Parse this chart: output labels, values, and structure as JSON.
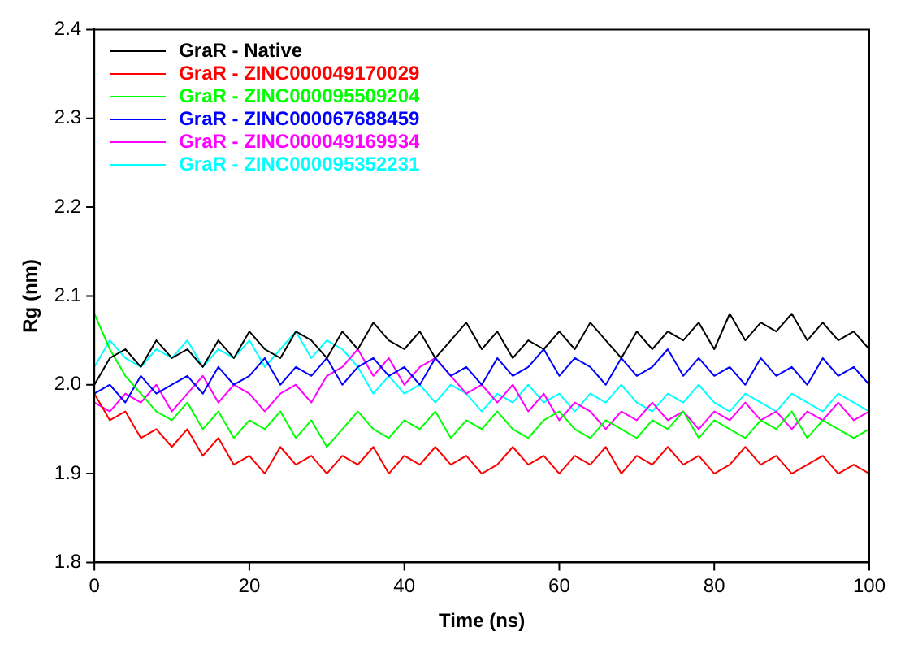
{
  "chart_data": {
    "type": "line",
    "xlabel": "Time (ns)",
    "ylabel": "Rg (nm)",
    "x": [
      0,
      2,
      4,
      6,
      8,
      10,
      12,
      14,
      16,
      18,
      20,
      22,
      24,
      26,
      28,
      30,
      32,
      34,
      36,
      38,
      40,
      42,
      44,
      46,
      48,
      50,
      52,
      54,
      56,
      58,
      60,
      62,
      64,
      66,
      68,
      70,
      72,
      74,
      76,
      78,
      80,
      82,
      84,
      86,
      88,
      90,
      92,
      94,
      96,
      98,
      100
    ],
    "xlim": [
      0,
      100
    ],
    "xticks": [
      0,
      20,
      40,
      60,
      80,
      100
    ],
    "ylim": [
      1.8,
      2.4
    ],
    "yticks": [
      1.8,
      1.9,
      {
        "value": 2.0,
        "label": "2.0"
      },
      2.1,
      2.2,
      2.3,
      2.4
    ],
    "grid": false,
    "legend": "top left",
    "marker": "none",
    "line_style": "solid",
    "series": [
      {
        "name": "GraR - Native",
        "color": "#000000",
        "values": [
          2.0,
          2.03,
          2.04,
          2.02,
          2.05,
          2.03,
          2.04,
          2.02,
          2.05,
          2.03,
          2.06,
          2.04,
          2.03,
          2.06,
          2.05,
          2.03,
          2.06,
          2.04,
          2.07,
          2.05,
          2.04,
          2.06,
          2.03,
          2.05,
          2.07,
          2.04,
          2.06,
          2.03,
          2.05,
          2.04,
          2.06,
          2.04,
          2.07,
          2.05,
          2.03,
          2.06,
          2.04,
          2.06,
          2.05,
          2.07,
          2.04,
          2.08,
          2.05,
          2.07,
          2.06,
          2.08,
          2.05,
          2.07,
          2.05,
          2.06,
          2.04
        ]
      },
      {
        "name": "GraR - ZINC000049170029",
        "color": "#ff0000",
        "values": [
          1.99,
          1.96,
          1.97,
          1.94,
          1.95,
          1.93,
          1.95,
          1.92,
          1.94,
          1.91,
          1.92,
          1.9,
          1.93,
          1.91,
          1.92,
          1.9,
          1.92,
          1.91,
          1.93,
          1.9,
          1.92,
          1.91,
          1.93,
          1.91,
          1.92,
          1.9,
          1.91,
          1.93,
          1.91,
          1.92,
          1.9,
          1.92,
          1.91,
          1.93,
          1.9,
          1.92,
          1.91,
          1.93,
          1.91,
          1.92,
          1.9,
          1.91,
          1.93,
          1.91,
          1.92,
          1.9,
          1.91,
          1.92,
          1.9,
          1.91,
          1.9
        ]
      },
      {
        "name": "GraR - ZINC000095509204",
        "color": "#00ff00",
        "values": [
          2.08,
          2.04,
          2.01,
          1.99,
          1.97,
          1.96,
          1.98,
          1.95,
          1.97,
          1.94,
          1.96,
          1.95,
          1.97,
          1.94,
          1.96,
          1.93,
          1.95,
          1.97,
          1.95,
          1.94,
          1.96,
          1.95,
          1.97,
          1.94,
          1.96,
          1.95,
          1.97,
          1.95,
          1.94,
          1.96,
          1.97,
          1.95,
          1.94,
          1.96,
          1.95,
          1.94,
          1.96,
          1.95,
          1.97,
          1.94,
          1.96,
          1.95,
          1.94,
          1.96,
          1.95,
          1.97,
          1.94,
          1.96,
          1.95,
          1.94,
          1.95
        ]
      },
      {
        "name": "GraR - ZINC000067688459",
        "color": "#0000ff",
        "values": [
          1.99,
          2.0,
          1.98,
          2.01,
          1.99,
          2.0,
          2.01,
          1.99,
          2.02,
          2.0,
          2.01,
          2.03,
          2.0,
          2.02,
          2.01,
          2.03,
          2.0,
          2.02,
          2.03,
          2.01,
          2.02,
          2.0,
          2.03,
          2.01,
          2.02,
          2.0,
          2.03,
          2.01,
          2.02,
          2.04,
          2.01,
          2.03,
          2.02,
          2.0,
          2.03,
          2.01,
          2.02,
          2.04,
          2.01,
          2.03,
          2.01,
          2.02,
          2.0,
          2.03,
          2.01,
          2.02,
          2.0,
          2.03,
          2.01,
          2.02,
          2.0
        ]
      },
      {
        "name": "GraR - ZINC000049169934",
        "color": "#ff00ff",
        "values": [
          1.98,
          1.97,
          1.99,
          1.98,
          2.0,
          1.97,
          1.99,
          2.01,
          1.98,
          2.0,
          1.99,
          1.97,
          1.99,
          2.0,
          1.98,
          2.01,
          2.02,
          2.04,
          2.01,
          2.03,
          2.0,
          2.02,
          2.03,
          2.01,
          1.99,
          2.0,
          1.98,
          2.0,
          1.97,
          1.99,
          1.96,
          1.98,
          1.97,
          1.95,
          1.97,
          1.96,
          1.98,
          1.96,
          1.97,
          1.95,
          1.97,
          1.96,
          1.98,
          1.96,
          1.97,
          1.95,
          1.97,
          1.96,
          1.98,
          1.96,
          1.97
        ]
      },
      {
        "name": "GraR - ZINC000095352231",
        "color": "#00ffff",
        "values": [
          2.02,
          2.05,
          2.03,
          2.02,
          2.04,
          2.03,
          2.05,
          2.02,
          2.04,
          2.03,
          2.05,
          2.02,
          2.04,
          2.06,
          2.03,
          2.05,
          2.04,
          2.02,
          1.99,
          2.01,
          1.99,
          2.0,
          1.98,
          2.0,
          1.99,
          1.97,
          1.99,
          1.98,
          2.0,
          1.98,
          1.99,
          1.97,
          1.99,
          1.98,
          2.0,
          1.98,
          1.97,
          1.99,
          1.98,
          2.0,
          1.98,
          1.97,
          1.99,
          1.98,
          1.97,
          1.99,
          1.98,
          1.97,
          1.99,
          1.98,
          1.97
        ]
      }
    ]
  }
}
